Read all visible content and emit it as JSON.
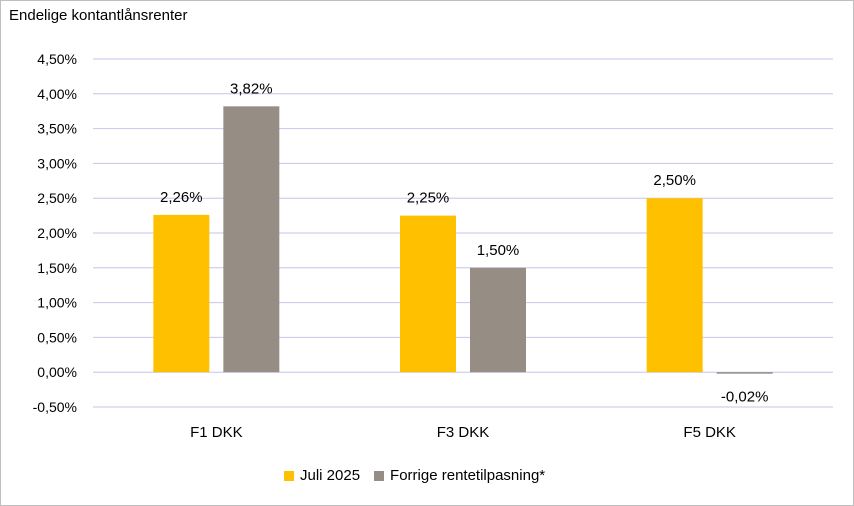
{
  "chart_data": {
    "type": "bar",
    "title": "Endelige kontantlånsrenter",
    "categories": [
      "F1 DKK",
      "F3 DKK",
      "F5 DKK"
    ],
    "series": [
      {
        "name": "Juli 2025",
        "values": [
          2.26,
          2.25,
          2.5
        ],
        "labels": [
          "2,26%",
          "2,25%",
          "2,50%"
        ],
        "color": "#FFC000"
      },
      {
        "name": "Forrige rentetilpasning*",
        "values": [
          3.82,
          1.5,
          -0.02
        ],
        "labels": [
          "3,82%",
          "1,50%",
          "-0,02%"
        ],
        "color": "#968E85"
      }
    ],
    "ylim": [
      -0.5,
      4.5
    ],
    "yticks": [
      -0.5,
      0,
      0.5,
      1.0,
      1.5,
      2.0,
      2.5,
      3.0,
      3.5,
      4.0,
      4.5
    ],
    "ytick_labels": [
      "-0,50%",
      "0,00%",
      "0,50%",
      "1,00%",
      "1,50%",
      "2,00%",
      "2,50%",
      "3,00%",
      "3,50%",
      "4,00%",
      "4,50%"
    ],
    "grid": true,
    "gridline_color": "#C6C6EC",
    "legend_position": "bottom"
  }
}
